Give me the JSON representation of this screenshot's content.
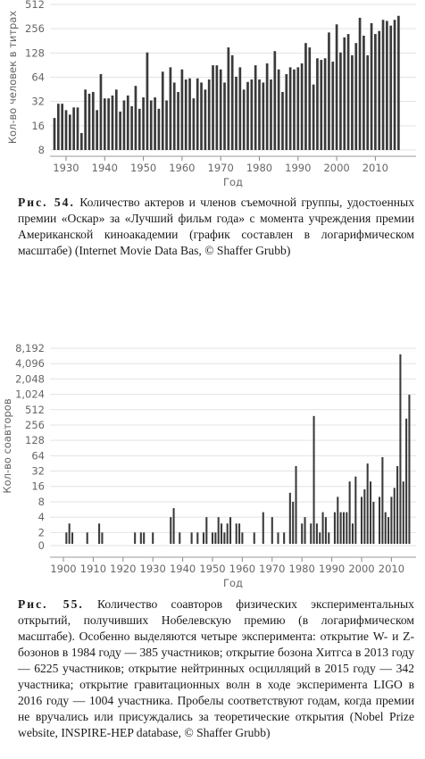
{
  "figures": [
    {
      "label": "Рис. 54.",
      "caption": "Количество актеров и членов съемочной группы, удостоенных премии «Оскар» за «Лучший фильм года» с момента учреждения премии Американской киноакадемии (график составлен в логарифмическом масштабе) (Internet Movie Data Bas, © Shaffer Grubb)"
    },
    {
      "label": "Рис. 55.",
      "caption": "Количество соавторов физических экспериментальных открытий, получивших Нобелевскую премию (в логарифмическом масштабе). Особенно выделяются четыре эксперимента: открытие W- и Z-бозонов в 1984 году — 385 участников; открытие бозона Хитгса в 2013 году — 6225 участников; открытие нейтринных осцилляций в 2015 году — 342 участника; открытие гравитационных волн в ходе эксперимента LIGO в 2016 году — 1004 участника. Пробелы соответствуют годам, когда премии не вручались или присуждались за теоретические открытия (Nobel Prize website, INSPIRE-HEP database, © Shaffer Grubb)"
    }
  ],
  "chart_data": [
    {
      "type": "bar",
      "xlabel": "Год",
      "ylabel": "Кол-во человек в титрах",
      "yscale": "log2",
      "ylim": [
        8,
        512
      ],
      "yticks": [
        "8",
        "16",
        "32",
        "64",
        "128",
        "256",
        "512"
      ],
      "xticks": [
        "1930",
        "1940",
        "1950",
        "1960",
        "1970",
        "1980",
        "1990",
        "2000",
        "2010"
      ],
      "grid": "horizontal",
      "x": [
        1927,
        1928,
        1929,
        1930,
        1931,
        1932,
        1933,
        1934,
        1935,
        1936,
        1937,
        1938,
        1939,
        1940,
        1941,
        1942,
        1943,
        1944,
        1945,
        1946,
        1947,
        1948,
        1949,
        1950,
        1951,
        1952,
        1953,
        1954,
        1955,
        1956,
        1957,
        1958,
        1959,
        1960,
        1961,
        1962,
        1963,
        1964,
        1965,
        1966,
        1967,
        1968,
        1969,
        1970,
        1971,
        1972,
        1973,
        1974,
        1975,
        1976,
        1977,
        1978,
        1979,
        1980,
        1981,
        1982,
        1983,
        1984,
        1985,
        1986,
        1987,
        1988,
        1989,
        1990,
        1991,
        1992,
        1993,
        1994,
        1995,
        1996,
        1997,
        1998,
        1999,
        2000,
        2001,
        2002,
        2003,
        2004,
        2005,
        2006,
        2007,
        2008,
        2009,
        2010,
        2011,
        2012,
        2013,
        2014,
        2015,
        2016
      ],
      "values": [
        20,
        30,
        30,
        25,
        22,
        27,
        27,
        13,
        45,
        40,
        42,
        25,
        70,
        35,
        35,
        38,
        45,
        24,
        33,
        38,
        28,
        50,
        26,
        36,
        130,
        33,
        36,
        26,
        75,
        33,
        85,
        55,
        42,
        80,
        60,
        62,
        35,
        62,
        55,
        45,
        60,
        90,
        90,
        80,
        55,
        150,
        120,
        65,
        85,
        45,
        56,
        60,
        90,
        60,
        55,
        95,
        60,
        135,
        80,
        42,
        70,
        85,
        80,
        85,
        95,
        170,
        150,
        52,
        110,
        105,
        110,
        230,
        100,
        290,
        130,
        200,
        220,
        120,
        170,
        350,
        210,
        120,
        300,
        220,
        240,
        330,
        320,
        280,
        330,
        370
      ]
    },
    {
      "type": "bar",
      "xlabel": "Год",
      "ylabel": "Кол-во соавторов",
      "yscale": "log2",
      "yticks": [
        "0",
        "2",
        "4",
        "8",
        "16",
        "32",
        "64",
        "128",
        "256",
        "512",
        "1,024",
        "2,048",
        "4,096",
        "8,192"
      ],
      "xticks": [
        "1900",
        "1910",
        "1920",
        "1930",
        "1940",
        "1950",
        "1960",
        "1970",
        "1980",
        "1990",
        "2000",
        "2010"
      ],
      "grid": "horizontal",
      "x": [
        1901,
        1902,
        1903,
        1908,
        1912,
        1913,
        1924,
        1926,
        1927,
        1930,
        1936,
        1937,
        1939,
        1943,
        1945,
        1947,
        1948,
        1950,
        1951,
        1952,
        1953,
        1954,
        1955,
        1956,
        1958,
        1959,
        1960,
        1964,
        1967,
        1970,
        1972,
        1974,
        1976,
        1977,
        1978,
        1980,
        1981,
        1983,
        1984,
        1985,
        1986,
        1987,
        1988,
        1989,
        1991,
        1992,
        1993,
        1994,
        1995,
        1996,
        1997,
        1998,
        2000,
        2001,
        2002,
        2003,
        2004,
        2006,
        2007,
        2008,
        2009,
        2010,
        2011,
        2012,
        2013,
        2014,
        2015,
        2016
      ],
      "values": [
        2,
        3,
        2,
        2,
        3,
        2,
        2,
        2,
        2,
        2,
        4,
        6,
        2,
        2,
        2,
        2,
        4,
        2,
        2,
        4,
        3,
        2,
        3,
        4,
        3,
        3,
        2,
        2,
        5,
        4,
        2,
        2,
        12,
        8,
        40,
        3,
        4,
        3,
        385,
        3,
        2,
        5,
        4,
        2,
        5,
        10,
        5,
        5,
        5,
        20,
        3,
        25,
        10,
        14,
        45,
        20,
        8,
        10,
        60,
        5,
        4,
        10,
        15,
        40,
        6225,
        20,
        342,
        1004
      ]
    }
  ]
}
